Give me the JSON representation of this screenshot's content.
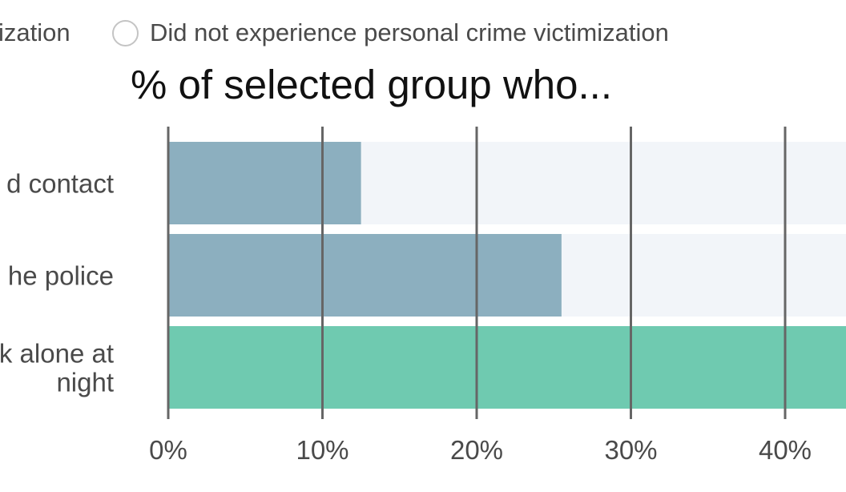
{
  "legend": {
    "items": [
      {
        "label": "ization"
      },
      {
        "label": "Did not experience personal crime victimization"
      }
    ]
  },
  "chart_data": {
    "type": "bar",
    "orientation": "horizontal",
    "title": "% of selected group who...",
    "categories": [
      [
        "d contact"
      ],
      [
        "he police"
      ],
      [
        "k alone at",
        "night"
      ]
    ],
    "values": [
      12.5,
      25.5,
      45
    ],
    "bar_colors": [
      "#8cafbf",
      "#8cafbf",
      "#6fcab0"
    ],
    "track_color": "#f2f5f9",
    "gridline_color": "#666666",
    "xlim": [
      0,
      44
    ],
    "xticks": [
      0,
      10,
      20,
      30,
      40
    ],
    "xtick_labels": [
      "0%",
      "10%",
      "20%",
      "30%",
      "40%"
    ],
    "grid": true
  }
}
